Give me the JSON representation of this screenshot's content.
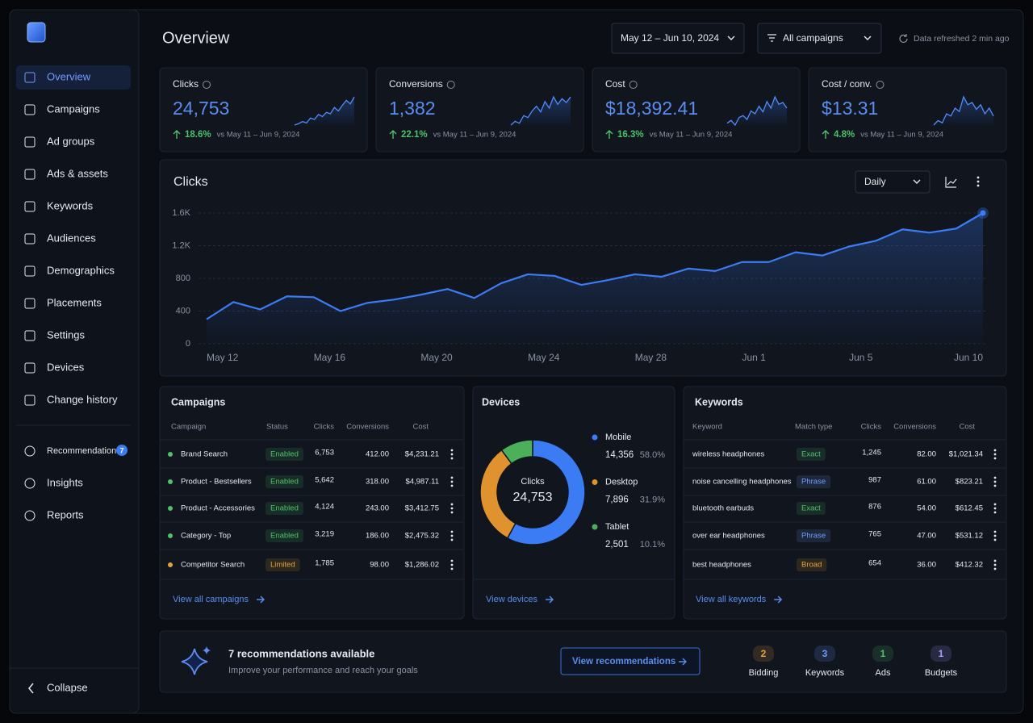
{
  "sidebar": {
    "nav": [
      "Overview",
      "Campaigns",
      "Ad groups",
      "Ads & assets",
      "Keywords",
      "Audiences",
      "Demographics",
      "Placements",
      "Settings",
      "Devices",
      "Change history"
    ],
    "secondary": [
      "Recommendations",
      "Insights",
      "Reports"
    ],
    "recommendations_badge": "7",
    "collapse": "Collapse"
  },
  "header": {
    "title": "Overview",
    "date_range": "May 12 – Jun 10, 2024",
    "filter": "All campaigns",
    "refreshed": "Data refreshed 2 min ago"
  },
  "kpis": [
    {
      "label": "Clicks",
      "value": "24,753",
      "change": "18.6%",
      "compare": "vs May 11 – Jun 9, 2024",
      "spark": [
        20,
        22,
        25,
        23,
        30,
        28,
        35,
        32,
        38,
        36,
        45,
        40,
        48,
        55,
        50,
        60
      ]
    },
    {
      "label": "Conversions",
      "value": "1,382",
      "change": "22.1%",
      "compare": "vs May 11 – Jun 9, 2024",
      "spark": [
        20,
        24,
        22,
        30,
        28,
        35,
        40,
        34,
        45,
        38,
        50,
        42,
        48,
        44,
        50
      ]
    },
    {
      "label": "Cost",
      "value": "$18,392.41",
      "change": "16.3%",
      "compare": "vs May 11 – Jun 9, 2024",
      "spark": [
        22,
        25,
        20,
        28,
        30,
        26,
        35,
        32,
        40,
        34,
        45,
        38,
        50,
        42,
        44,
        38
      ]
    },
    {
      "label": "Cost / conv.",
      "value": "$13.31",
      "change": "4.8%",
      "compare": "vs May 11 – Jun 9, 2024",
      "spark": [
        30,
        34,
        32,
        40,
        38,
        45,
        42,
        55,
        48,
        50,
        44,
        48,
        40,
        45,
        38
      ]
    }
  ],
  "clicks_chart": {
    "type": "line",
    "title": "Clicks",
    "period": "Daily",
    "color": "#3b7cf5",
    "categories": [
      "May 12",
      null,
      null,
      null,
      "May 16",
      null,
      null,
      null,
      "May 20",
      null,
      null,
      null,
      "May 24",
      null,
      null,
      null,
      "May 28",
      null,
      null,
      null,
      "Jun 1",
      null,
      null,
      null,
      "Jun 5",
      null,
      null,
      null,
      null,
      "Jun 10"
    ],
    "values": [
      300,
      510,
      420,
      580,
      570,
      400,
      500,
      540,
      600,
      670,
      560,
      740,
      850,
      830,
      720,
      780,
      850,
      820,
      920,
      890,
      1000,
      1000,
      1120,
      1080,
      1190,
      1260,
      1400,
      1360,
      1410,
      1600
    ],
    "ylim": [
      0,
      1600
    ],
    "yticks": [
      0,
      400,
      800,
      {
        "value": 1200,
        "label": "1.2K"
      },
      {
        "value": 1600,
        "label": "1.6K"
      }
    ],
    "grid": true
  },
  "campaigns": {
    "title": "Campaigns",
    "columns": [
      "Campaign",
      "Status",
      "Clicks",
      "Conversions",
      "Cost"
    ],
    "rows": [
      {
        "name": "Brand Search",
        "status": "Enabled",
        "clicks": "6,753",
        "conversions": "412.00",
        "cost": "$4,231.21",
        "color": "#4cc26a"
      },
      {
        "name": "Product - Bestsellers",
        "status": "Enabled",
        "clicks": "5,642",
        "conversions": "318.00",
        "cost": "$4,987.11",
        "color": "#4cc26a"
      },
      {
        "name": "Product - Accessories",
        "status": "Enabled",
        "clicks": "4,124",
        "conversions": "243.00",
        "cost": "$3,412.75",
        "color": "#4cc26a"
      },
      {
        "name": "Category - Top",
        "status": "Enabled",
        "clicks": "3,219",
        "conversions": "186.00",
        "cost": "$2,475.32",
        "color": "#4cc26a"
      },
      {
        "name": "Competitor Search",
        "status": "Limited",
        "clicks": "1,785",
        "conversions": "98.00",
        "cost": "$1,286.02",
        "color": "#e6a23c"
      }
    ],
    "link": "View all campaigns"
  },
  "devices": {
    "type": "pie",
    "title": "Devices",
    "center_label": "Clicks",
    "center_value": "24,753",
    "categories": [
      "Mobile",
      "Desktop",
      "Tablet"
    ],
    "counts": [
      "14,356",
      "7,896",
      "2,501"
    ],
    "values": [
      58.0,
      31.9,
      10.1
    ],
    "value_labels": [
      "58.0%",
      "31.9%",
      "10.1%"
    ],
    "colors": [
      "#3b7cf5",
      "#e0922f",
      "#4caf5a"
    ],
    "link": "View devices"
  },
  "keywords": {
    "title": "Keywords",
    "columns": [
      "Keyword",
      "Match type",
      "Clicks",
      "Conversions",
      "Cost"
    ],
    "rows": [
      {
        "name": "wireless headphones",
        "status": "Exact",
        "clicks": "1,245",
        "conversions": "82.00",
        "cost": "$1,021.34",
        "color": "#4cc26a"
      },
      {
        "name": "noise cancelling headphones",
        "status": "Phrase",
        "clicks": "987",
        "conversions": "61.00",
        "cost": "$823.21",
        "color": "#6f9dff"
      },
      {
        "name": "bluetooth earbuds",
        "status": "Exact",
        "clicks": "876",
        "conversions": "54.00",
        "cost": "$612.45",
        "color": "#4cc26a"
      },
      {
        "name": "over ear headphones",
        "status": "Phrase",
        "clicks": "765",
        "conversions": "47.00",
        "cost": "$531.12",
        "color": "#6f9dff"
      },
      {
        "name": "best headphones",
        "status": "Broad",
        "clicks": "654",
        "conversions": "36.00",
        "cost": "$412.32",
        "color": "#e6a23c"
      }
    ],
    "link": "View all keywords"
  },
  "recommendations": {
    "title": "7 recommendations available",
    "subtitle": "Improve your performance and reach your goals",
    "button": "View recommendations",
    "groups": [
      {
        "count": "2",
        "label": "Bidding",
        "color": "#e6a23c"
      },
      {
        "count": "3",
        "label": "Keywords",
        "color": "#6f9dff"
      },
      {
        "count": "1",
        "label": "Ads",
        "color": "#4cc26a"
      },
      {
        "count": "1",
        "label": "Budgets",
        "color": "#a99bff"
      }
    ]
  }
}
